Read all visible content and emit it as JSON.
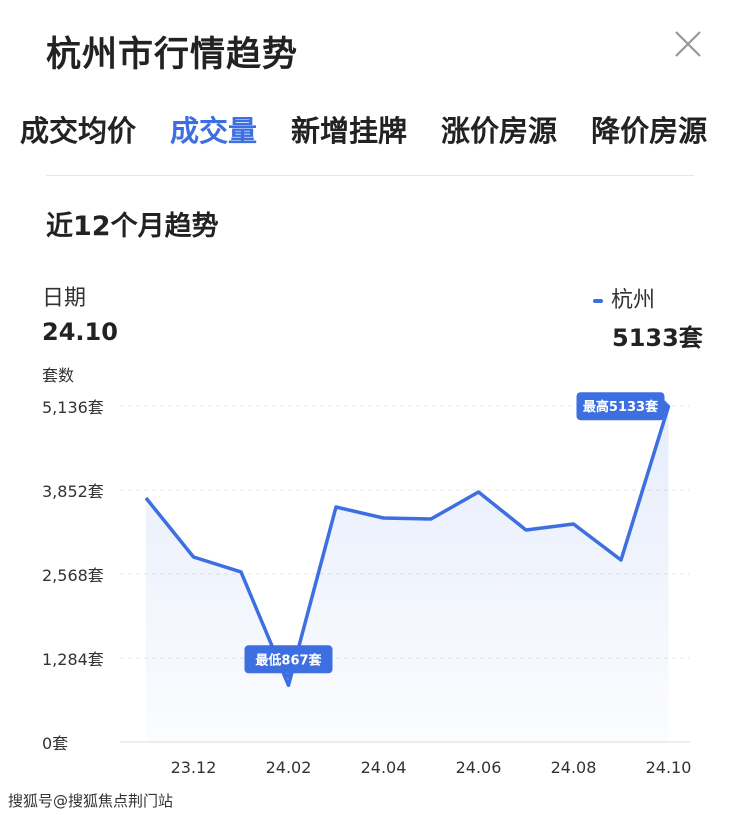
{
  "header": {
    "title": "杭州市行情趋势",
    "close_icon": "close-icon"
  },
  "tabs": [
    {
      "label": "成交均价"
    },
    {
      "label": "成交量",
      "active": true
    },
    {
      "label": "新增挂牌"
    },
    {
      "label": "涨价房源"
    },
    {
      "label": "降价房源"
    }
  ],
  "subtitle": "近12个月趋势",
  "readout": {
    "date_label": "日期",
    "date_value": "24.10",
    "series_label": "杭州",
    "series_value": "5133套"
  },
  "watermark": "搜狐号@搜狐焦点荆门站",
  "colors": {
    "accent": "#3d6fe0"
  },
  "chart_data": {
    "type": "area",
    "ylabel": "套数",
    "x": [
      "23.11",
      "23.12",
      "24.01",
      "24.02",
      "24.03",
      "24.04",
      "24.05",
      "24.06",
      "24.07",
      "24.08",
      "24.09",
      "24.10"
    ],
    "xtick_labels": [
      "23.12",
      "24.02",
      "24.04",
      "24.06",
      "24.08",
      "24.10"
    ],
    "series": [
      {
        "name": "杭州",
        "values": [
          3730,
          2828,
          2599,
          867,
          3592,
          3424,
          3409,
          3821,
          3241,
          3332,
          2782,
          5133
        ]
      }
    ],
    "yticks": [
      0,
      1284,
      2568,
      3852,
      5136
    ],
    "ytick_labels": [
      "0套",
      "1,284套",
      "2,568套",
      "3,852套",
      "5,136套"
    ],
    "ylim": [
      0,
      5136
    ],
    "grid": true,
    "annotations": {
      "min": "最低867套",
      "max": "最高5133套"
    }
  }
}
